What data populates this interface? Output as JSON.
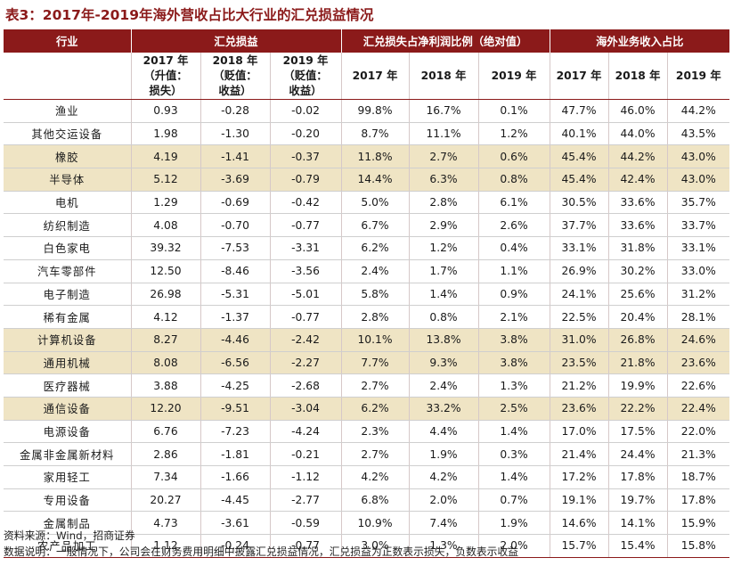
{
  "title": "表3：2017年-2019年海外营收占比大行业的汇兑损益情况",
  "header": {
    "industry": "行业",
    "group1": "汇兑损益",
    "group2": "汇兑损失占净利润比例（绝对值）",
    "group3": "海外业务收入占比",
    "sub1": [
      "2017 年",
      "（升值：",
      "损失）"
    ],
    "sub2": [
      "2018 年",
      "（贬值：",
      "收益）"
    ],
    "sub3": [
      "2019 年",
      "（贬值：",
      "收益）"
    ],
    "y2017": "2017 年",
    "y2018": "2018 年",
    "y2019": "2019 年"
  },
  "rows": [
    {
      "industry": "渔业",
      "fx2017": "0.93",
      "fx2018": "-0.28",
      "fx2019": "-0.02",
      "ratio2017": "99.8%",
      "ratio2018": "16.7%",
      "ratio2019": "0.1%",
      "ov2017": "47.7%",
      "ov2018": "46.0%",
      "ov2019": "44.2%",
      "highlight": false
    },
    {
      "industry": "其他交运设备",
      "fx2017": "1.98",
      "fx2018": "-1.30",
      "fx2019": "-0.20",
      "ratio2017": "8.7%",
      "ratio2018": "11.1%",
      "ratio2019": "1.2%",
      "ov2017": "40.1%",
      "ov2018": "44.0%",
      "ov2019": "43.5%",
      "highlight": false
    },
    {
      "industry": "橡胶",
      "fx2017": "4.19",
      "fx2018": "-1.41",
      "fx2019": "-0.37",
      "ratio2017": "11.8%",
      "ratio2018": "2.7%",
      "ratio2019": "0.6%",
      "ov2017": "45.4%",
      "ov2018": "44.2%",
      "ov2019": "43.0%",
      "highlight": true
    },
    {
      "industry": "半导体",
      "fx2017": "5.12",
      "fx2018": "-3.69",
      "fx2019": "-0.79",
      "ratio2017": "14.4%",
      "ratio2018": "6.3%",
      "ratio2019": "0.8%",
      "ov2017": "45.4%",
      "ov2018": "42.4%",
      "ov2019": "43.0%",
      "highlight": true
    },
    {
      "industry": "电机",
      "fx2017": "1.29",
      "fx2018": "-0.69",
      "fx2019": "-0.42",
      "ratio2017": "5.0%",
      "ratio2018": "2.8%",
      "ratio2019": "6.1%",
      "ov2017": "30.5%",
      "ov2018": "33.6%",
      "ov2019": "35.7%",
      "highlight": false
    },
    {
      "industry": "纺织制造",
      "fx2017": "4.08",
      "fx2018": "-0.70",
      "fx2019": "-0.77",
      "ratio2017": "6.7%",
      "ratio2018": "2.9%",
      "ratio2019": "2.6%",
      "ov2017": "37.7%",
      "ov2018": "33.6%",
      "ov2019": "33.7%",
      "highlight": false
    },
    {
      "industry": "白色家电",
      "fx2017": "39.32",
      "fx2018": "-7.53",
      "fx2019": "-3.31",
      "ratio2017": "6.2%",
      "ratio2018": "1.2%",
      "ratio2019": "0.4%",
      "ov2017": "33.1%",
      "ov2018": "31.8%",
      "ov2019": "33.1%",
      "highlight": false
    },
    {
      "industry": "汽车零部件",
      "fx2017": "12.50",
      "fx2018": "-8.46",
      "fx2019": "-3.56",
      "ratio2017": "2.4%",
      "ratio2018": "1.7%",
      "ratio2019": "1.1%",
      "ov2017": "26.9%",
      "ov2018": "30.2%",
      "ov2019": "33.0%",
      "highlight": false
    },
    {
      "industry": "电子制造",
      "fx2017": "26.98",
      "fx2018": "-5.31",
      "fx2019": "-5.01",
      "ratio2017": "5.8%",
      "ratio2018": "1.4%",
      "ratio2019": "0.9%",
      "ov2017": "24.1%",
      "ov2018": "25.6%",
      "ov2019": "31.2%",
      "highlight": false
    },
    {
      "industry": "稀有金属",
      "fx2017": "4.12",
      "fx2018": "-1.37",
      "fx2019": "-0.77",
      "ratio2017": "2.8%",
      "ratio2018": "0.8%",
      "ratio2019": "2.1%",
      "ov2017": "22.5%",
      "ov2018": "20.4%",
      "ov2019": "28.1%",
      "highlight": false
    },
    {
      "industry": "计算机设备",
      "fx2017": "8.27",
      "fx2018": "-4.46",
      "fx2019": "-2.42",
      "ratio2017": "10.1%",
      "ratio2018": "13.8%",
      "ratio2019": "3.8%",
      "ov2017": "31.0%",
      "ov2018": "26.8%",
      "ov2019": "24.6%",
      "highlight": true
    },
    {
      "industry": "通用机械",
      "fx2017": "8.08",
      "fx2018": "-6.56",
      "fx2019": "-2.27",
      "ratio2017": "7.7%",
      "ratio2018": "9.3%",
      "ratio2019": "3.8%",
      "ov2017": "23.5%",
      "ov2018": "21.8%",
      "ov2019": "23.6%",
      "highlight": true
    },
    {
      "industry": "医疗器械",
      "fx2017": "3.88",
      "fx2018": "-4.25",
      "fx2019": "-2.68",
      "ratio2017": "2.7%",
      "ratio2018": "2.4%",
      "ratio2019": "1.3%",
      "ov2017": "21.2%",
      "ov2018": "19.9%",
      "ov2019": "22.6%",
      "highlight": false
    },
    {
      "industry": "通信设备",
      "fx2017": "12.20",
      "fx2018": "-9.51",
      "fx2019": "-3.04",
      "ratio2017": "6.2%",
      "ratio2018": "33.2%",
      "ratio2019": "2.5%",
      "ov2017": "23.6%",
      "ov2018": "22.2%",
      "ov2019": "22.4%",
      "highlight": true
    },
    {
      "industry": "电源设备",
      "fx2017": "6.76",
      "fx2018": "-7.23",
      "fx2019": "-4.24",
      "ratio2017": "2.3%",
      "ratio2018": "4.4%",
      "ratio2019": "1.4%",
      "ov2017": "17.0%",
      "ov2018": "17.5%",
      "ov2019": "22.0%",
      "highlight": false
    },
    {
      "industry": "金属非金属新材料",
      "fx2017": "2.86",
      "fx2018": "-1.81",
      "fx2019": "-0.21",
      "ratio2017": "2.7%",
      "ratio2018": "1.9%",
      "ratio2019": "0.3%",
      "ov2017": "21.4%",
      "ov2018": "24.4%",
      "ov2019": "21.3%",
      "highlight": false
    },
    {
      "industry": "家用轻工",
      "fx2017": "7.34",
      "fx2018": "-1.66",
      "fx2019": "-1.12",
      "ratio2017": "4.2%",
      "ratio2018": "4.2%",
      "ratio2019": "1.4%",
      "ov2017": "17.2%",
      "ov2018": "17.8%",
      "ov2019": "18.7%",
      "highlight": false
    },
    {
      "industry": "专用设备",
      "fx2017": "20.27",
      "fx2018": "-4.45",
      "fx2019": "-2.77",
      "ratio2017": "6.8%",
      "ratio2018": "2.0%",
      "ratio2019": "0.7%",
      "ov2017": "19.1%",
      "ov2018": "19.7%",
      "ov2019": "17.8%",
      "highlight": false
    },
    {
      "industry": "金属制品",
      "fx2017": "4.73",
      "fx2018": "-3.61",
      "fx2019": "-0.59",
      "ratio2017": "10.9%",
      "ratio2018": "7.4%",
      "ratio2019": "1.9%",
      "ov2017": "14.6%",
      "ov2018": "14.1%",
      "ov2019": "15.9%",
      "highlight": false
    },
    {
      "industry": "农产品加工",
      "fx2017": "1.12",
      "fx2018": "-0.24",
      "fx2019": "-0.77",
      "ratio2017": "3.0%",
      "ratio2018": "1.3%",
      "ratio2019": "2.0%",
      "ov2017": "15.7%",
      "ov2018": "15.4%",
      "ov2019": "15.8%",
      "highlight": false
    }
  ],
  "notes": {
    "source": "资料来源：Wind，招商证券",
    "description": "数据说明：一般情况下，公司会在财务费用明细中披露汇兑损益情况，汇兑损益为正数表示损失，负数表示收益"
  }
}
